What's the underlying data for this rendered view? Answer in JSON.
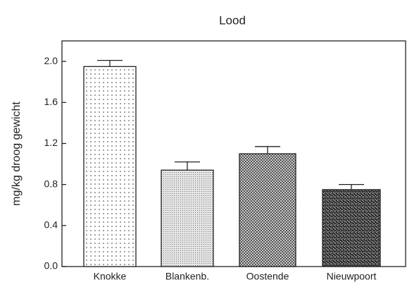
{
  "chart_data": {
    "type": "bar",
    "title": "Lood",
    "ylabel": "mg/kg droog gewicht",
    "categories": [
      "Knokke",
      "Blankenb.",
      "Oostende",
      "Nieuwpoort"
    ],
    "values": [
      1.95,
      0.94,
      1.1,
      0.75
    ],
    "errors": [
      0.06,
      0.08,
      0.07,
      0.05
    ],
    "ylim": [
      0,
      2.2
    ],
    "yticks": [
      {
        "value": 0,
        "label": "0.0"
      },
      0.4,
      0.8,
      1.2,
      1.6,
      {
        "value": 2,
        "label": "2.0"
      }
    ]
  }
}
